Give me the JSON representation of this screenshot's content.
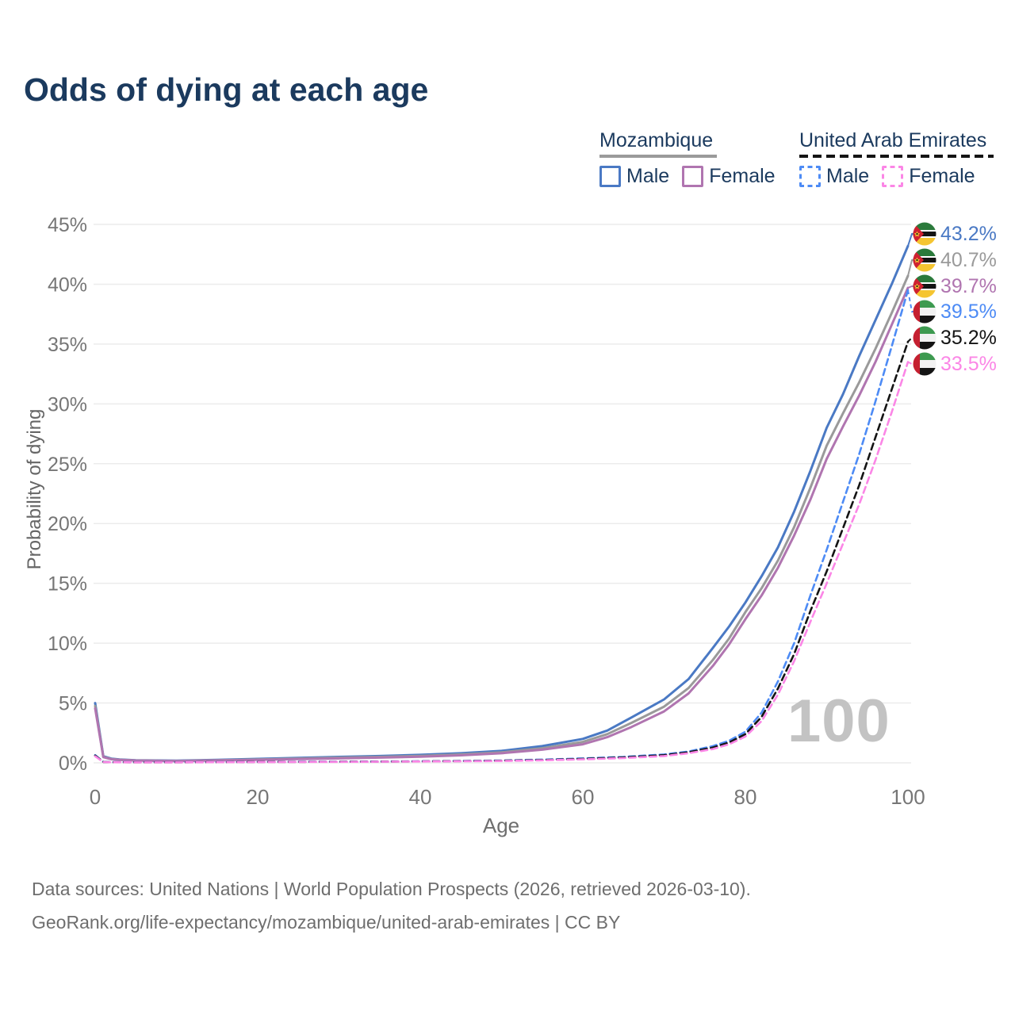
{
  "title": "Odds of dying at each age",
  "legend": {
    "groups": [
      {
        "name": "Mozambique",
        "line_style": "solid",
        "underline_color": "#9b9b9b",
        "items": [
          {
            "label": "Male",
            "color": "#4a79c4",
            "dashed": false
          },
          {
            "label": "Female",
            "color": "#b075b0",
            "dashed": false
          }
        ]
      },
      {
        "name": "United Arab Emirates",
        "line_style": "dashed",
        "underline_color": "#141414",
        "items": [
          {
            "label": "Male",
            "color": "#4d8bf5",
            "dashed": true
          },
          {
            "label": "Female",
            "color": "#fb86e6",
            "dashed": true
          }
        ]
      }
    ]
  },
  "chart_data": {
    "type": "line",
    "title": "Odds of dying at each age",
    "xlabel": "Age",
    "ylabel": "Probability of dying",
    "xlim": [
      0,
      100
    ],
    "ylim": [
      0,
      45
    ],
    "x_ticks": [
      0,
      20,
      40,
      60,
      80,
      100
    ],
    "y_ticks": [
      0,
      5,
      10,
      15,
      20,
      25,
      30,
      35,
      40,
      45
    ],
    "grid": true,
    "legend_position": "top-right",
    "watermark": "100",
    "series": [
      {
        "name": "Mozambique Male",
        "flag": "mozambique",
        "color": "#4a79c4",
        "dashed": false,
        "end_label": "43.2%",
        "x": [
          0,
          1,
          2,
          3,
          5,
          10,
          15,
          20,
          25,
          30,
          35,
          40,
          45,
          50,
          55,
          60,
          63,
          66,
          70,
          73,
          76,
          78,
          80,
          82,
          84,
          86,
          88,
          90,
          92,
          94,
          96,
          98,
          100
        ],
        "y": [
          5.0,
          0.55,
          0.35,
          0.28,
          0.22,
          0.18,
          0.25,
          0.33,
          0.42,
          0.5,
          0.57,
          0.67,
          0.8,
          1.0,
          1.4,
          2.0,
          2.7,
          3.8,
          5.3,
          7.0,
          9.6,
          11.4,
          13.4,
          15.6,
          18.0,
          21.0,
          24.4,
          28.0,
          30.8,
          34.0,
          37.0,
          40.0,
          43.2
        ]
      },
      {
        "name": "Mozambique Both sexes",
        "flag": "mozambique",
        "color": "#9a9a9a",
        "dashed": false,
        "end_label": "40.7%",
        "x": [
          0,
          1,
          2,
          3,
          5,
          10,
          15,
          20,
          25,
          30,
          35,
          40,
          45,
          50,
          55,
          60,
          63,
          66,
          70,
          73,
          76,
          78,
          80,
          82,
          84,
          86,
          88,
          90,
          92,
          94,
          96,
          98,
          100
        ],
        "y": [
          4.75,
          0.5,
          0.32,
          0.26,
          0.2,
          0.16,
          0.22,
          0.28,
          0.36,
          0.43,
          0.5,
          0.58,
          0.7,
          0.88,
          1.22,
          1.75,
          2.4,
          3.35,
          4.7,
          6.25,
          8.6,
          10.4,
          12.6,
          14.6,
          16.9,
          19.7,
          23.0,
          26.5,
          29.2,
          31.8,
          34.6,
          37.6,
          40.7
        ]
      },
      {
        "name": "Mozambique Female",
        "flag": "mozambique",
        "color": "#b075b0",
        "dashed": false,
        "end_label": "39.7%",
        "x": [
          0,
          1,
          2,
          3,
          5,
          10,
          15,
          20,
          25,
          30,
          35,
          40,
          45,
          50,
          55,
          60,
          63,
          66,
          70,
          73,
          76,
          78,
          80,
          82,
          84,
          86,
          88,
          90,
          92,
          94,
          96,
          98,
          100
        ],
        "y": [
          4.55,
          0.48,
          0.3,
          0.25,
          0.19,
          0.15,
          0.2,
          0.25,
          0.31,
          0.37,
          0.44,
          0.52,
          0.63,
          0.8,
          1.1,
          1.55,
          2.15,
          3.0,
          4.3,
          5.8,
          8.1,
          9.9,
          12.0,
          14.0,
          16.3,
          19.0,
          22.0,
          25.4,
          28.1,
          30.7,
          33.5,
          36.6,
          39.7
        ]
      },
      {
        "name": "United Arab Emirates Male",
        "flag": "uae",
        "color": "#4d8bf5",
        "dashed": true,
        "end_label": "39.5%",
        "x": [
          0,
          1,
          2,
          5,
          10,
          15,
          20,
          25,
          30,
          35,
          40,
          45,
          50,
          55,
          60,
          65,
          70,
          73,
          76,
          78,
          80,
          82,
          84,
          86,
          88,
          90,
          92,
          94,
          96,
          98,
          100
        ],
        "y": [
          0.65,
          0.08,
          0.06,
          0.05,
          0.05,
          0.06,
          0.08,
          0.09,
          0.1,
          0.11,
          0.13,
          0.16,
          0.2,
          0.27,
          0.37,
          0.5,
          0.7,
          0.95,
          1.4,
          1.85,
          2.6,
          4.2,
          6.8,
          10.0,
          14.0,
          17.8,
          21.8,
          25.8,
          30.2,
          34.8,
          39.5
        ]
      },
      {
        "name": "United Arab Emirates Both sexes",
        "flag": "uae",
        "color": "#141414",
        "dashed": true,
        "end_label": "35.2%",
        "x": [
          0,
          1,
          2,
          5,
          10,
          15,
          20,
          25,
          30,
          35,
          40,
          45,
          50,
          55,
          60,
          65,
          70,
          73,
          76,
          78,
          80,
          82,
          84,
          86,
          88,
          90,
          92,
          94,
          96,
          98,
          100
        ],
        "y": [
          0.6,
          0.07,
          0.055,
          0.045,
          0.045,
          0.055,
          0.07,
          0.08,
          0.09,
          0.1,
          0.12,
          0.145,
          0.18,
          0.24,
          0.33,
          0.45,
          0.64,
          0.88,
          1.28,
          1.7,
          2.4,
          3.85,
          6.2,
          9.1,
          12.7,
          16.0,
          19.6,
          23.2,
          27.2,
          31.2,
          35.2
        ]
      },
      {
        "name": "United Arab Emirates Female",
        "flag": "uae",
        "color": "#fb86e6",
        "dashed": true,
        "end_label": "33.5%",
        "x": [
          0,
          1,
          2,
          5,
          10,
          15,
          20,
          25,
          30,
          35,
          40,
          45,
          50,
          55,
          60,
          65,
          70,
          73,
          76,
          78,
          80,
          82,
          84,
          86,
          88,
          90,
          92,
          94,
          96,
          98,
          100
        ],
        "y": [
          0.55,
          0.065,
          0.05,
          0.04,
          0.04,
          0.05,
          0.06,
          0.07,
          0.08,
          0.09,
          0.11,
          0.13,
          0.16,
          0.21,
          0.29,
          0.4,
          0.57,
          0.8,
          1.15,
          1.55,
          2.2,
          3.5,
          5.7,
          8.5,
          11.8,
          15.0,
          18.3,
          21.6,
          25.3,
          29.3,
          33.5
        ]
      }
    ]
  },
  "footer": {
    "line1": "Data sources: United Nations | World Population Prospects (2026, retrieved 2026-03-10).",
    "line2": "GeoRank.org/life-expectancy/mozambique/united-arab-emirates | CC BY"
  }
}
